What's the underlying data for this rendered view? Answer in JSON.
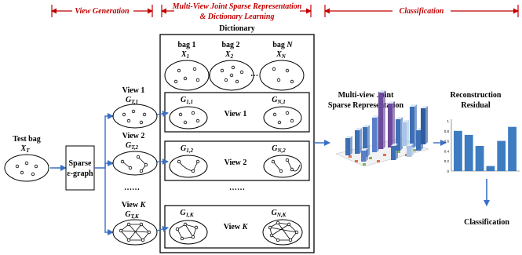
{
  "stages": {
    "view_generation": "View Generation",
    "mvjsr_line1": "Multi-View Joint Sparse Representation",
    "mvjsr_line2": "& Dictionary Learning",
    "classification": "Classification"
  },
  "dictionary": {
    "title": "Dictionary",
    "bag1": "bag 1",
    "bag2": "bag 2",
    "bagN_prefix": "bag ",
    "bagN_var": "N",
    "x1": "X",
    "x1_sub": "1",
    "x2": "X",
    "x2_sub": "2",
    "xn": "X",
    "xn_sub": "N",
    "dots": "…",
    "rows": [
      {
        "label_prefix": "View ",
        "label_var": "1",
        "g_left": "G",
        "g_left_sub": "1,1",
        "g_right": "G",
        "g_right_sub": "N,1"
      },
      {
        "label_prefix": "View ",
        "label_var": "2",
        "g_left": "G",
        "g_left_sub": "1,2",
        "g_right": "G",
        "g_right_sub": "N,2"
      },
      {
        "label_prefix": "View ",
        "label_var": "K",
        "g_left": "G",
        "g_left_sub": "1,K",
        "g_right": "G",
        "g_right_sub": "N,K"
      }
    ],
    "middle_dots": "……"
  },
  "test_bag": {
    "line1": "Test bag",
    "x": "X",
    "x_sub": "T"
  },
  "sparse_graph": {
    "line1": "Sparse",
    "line2": "ε-graph"
  },
  "views": [
    {
      "label_prefix": "View ",
      "label_var": "1",
      "g": "G",
      "g_sub": "T,1"
    },
    {
      "label_prefix": "View ",
      "label_var": "2",
      "g": "G",
      "g_sub": "T,2"
    },
    {
      "label_prefix": "View ",
      "label_var": "K",
      "g": "G",
      "g_sub": "T,K"
    }
  ],
  "views_dots": "……",
  "mvjsr": {
    "line1": "Multi-view Joint",
    "line2": "Sparse Representation"
  },
  "residual": {
    "line1": "Reconstruction",
    "line2": "Residual",
    "y_ticks": [
      "1",
      "0.8",
      "0.6",
      "0.4",
      "0.2",
      "0"
    ],
    "values": [
      0.8,
      0.72,
      0.5,
      0.1,
      0.6,
      0.88
    ]
  },
  "classification_output": "Classification",
  "colors": {
    "arrow": "#3a6fc4",
    "stage": "#c00000",
    "bar": "#3d7cc1"
  }
}
